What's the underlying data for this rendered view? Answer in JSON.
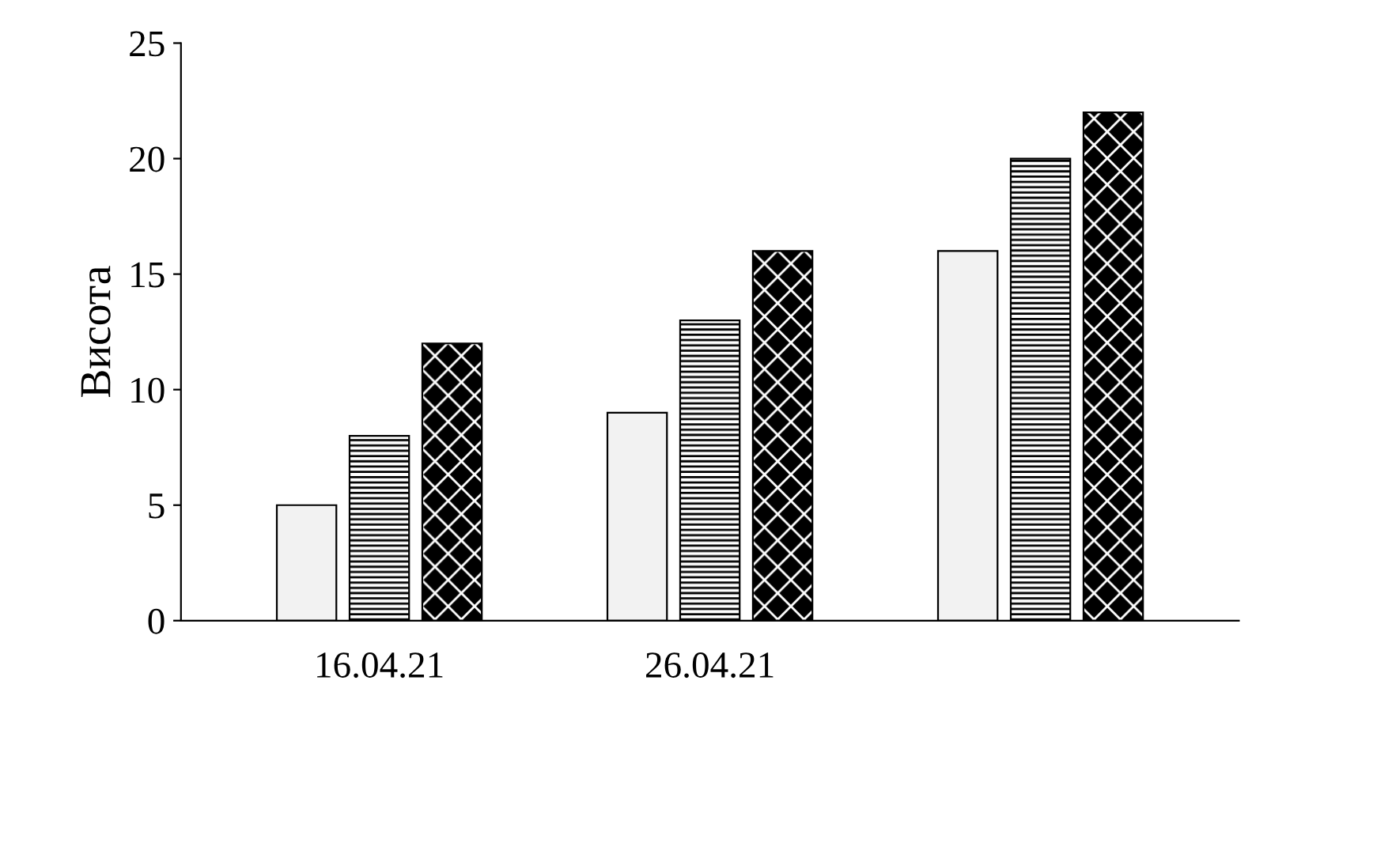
{
  "chart_data": {
    "type": "bar",
    "ylabel": "Висота",
    "categories": [
      "16.04.21",
      "26.04.21",
      null
    ],
    "series": [
      {
        "color": "#f2f2f2",
        "values": [
          5,
          9,
          16
        ]
      },
      {
        "color": "#000000",
        "values": [
          8,
          13,
          20
        ]
      },
      {
        "color": "#000000",
        "values": [
          12,
          16,
          22
        ]
      }
    ],
    "ylim": [
      0,
      25
    ],
    "yticks": [
      0,
      5,
      10,
      15,
      20,
      25
    ],
    "grid": false
  }
}
